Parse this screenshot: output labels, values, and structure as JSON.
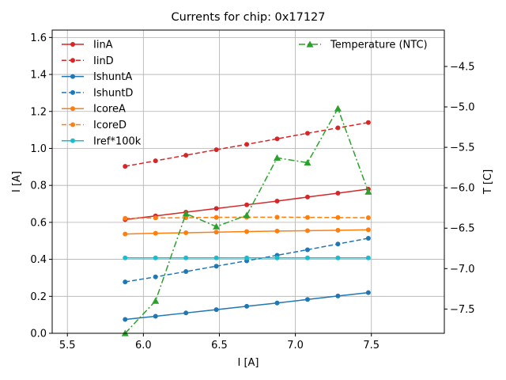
{
  "chart_data": {
    "type": "line",
    "title": "Currents for chip: 0x17127",
    "xlabel": "I [A]",
    "ylabel": "I [A]",
    "y2label": "T [C]",
    "xlim": [
      5.4,
      7.98
    ],
    "ylim": [
      0,
      1.64
    ],
    "y2lim": [
      -7.8,
      -4.05
    ],
    "xticks": [
      5.5,
      6.0,
      6.5,
      7.0,
      7.5
    ],
    "xtick_labels": [
      "5.5",
      "6.0",
      "6.5",
      "7.0",
      "7.5"
    ],
    "yticks": [
      0.0,
      0.2,
      0.4,
      0.6,
      0.8,
      1.0,
      1.2,
      1.4,
      1.6
    ],
    "ytick_labels": [
      "0.0",
      "0.2",
      "0.4",
      "0.6",
      "0.8",
      "1.0",
      "1.2",
      "1.4",
      "1.6"
    ],
    "y2ticks": [
      -7.5,
      -7.0,
      -6.5,
      -6.0,
      -5.5,
      -5.0,
      -4.5
    ],
    "y2tick_labels": [
      "−7.5",
      "−7.0",
      "−6.5",
      "−6.0",
      "−5.5",
      "−5.0",
      "−4.5"
    ],
    "grid": true,
    "legend_left": "upper-left",
    "legend_right": "upper-right",
    "x": [
      5.88,
      6.08,
      6.28,
      6.48,
      6.68,
      6.88,
      7.08,
      7.28,
      7.48
    ],
    "series": [
      {
        "name": "IinA",
        "axis": "left",
        "color": "#d62728",
        "dash": "solid",
        "marker": "circle",
        "values": [
          0.615,
          0.635,
          0.655,
          0.675,
          0.695,
          0.715,
          0.737,
          0.758,
          0.78
        ]
      },
      {
        "name": "IinD",
        "axis": "left",
        "color": "#d62728",
        "dash": "dashed",
        "marker": "circle",
        "values": [
          0.903,
          0.933,
          0.963,
          0.993,
          1.022,
          1.052,
          1.082,
          1.111,
          1.14
        ]
      },
      {
        "name": "IshuntA",
        "axis": "left",
        "color": "#1f77b4",
        "dash": "solid",
        "marker": "circle",
        "values": [
          0.075,
          0.092,
          0.11,
          0.128,
          0.146,
          0.164,
          0.183,
          0.202,
          0.22
        ]
      },
      {
        "name": "IshuntD",
        "axis": "left",
        "color": "#1f77b4",
        "dash": "dashed",
        "marker": "circle",
        "values": [
          0.278,
          0.305,
          0.334,
          0.363,
          0.392,
          0.422,
          0.452,
          0.483,
          0.514
        ]
      },
      {
        "name": "IcoreA",
        "axis": "left",
        "color": "#ff7f0e",
        "dash": "solid",
        "marker": "circle",
        "values": [
          0.537,
          0.541,
          0.544,
          0.547,
          0.55,
          0.553,
          0.555,
          0.557,
          0.56
        ]
      },
      {
        "name": "IcoreD",
        "axis": "left",
        "color": "#ff7f0e",
        "dash": "dashed",
        "marker": "circle",
        "values": [
          0.622,
          0.624,
          0.625,
          0.627,
          0.628,
          0.628,
          0.627,
          0.626,
          0.625
        ]
      },
      {
        "name": "Iref*100k",
        "axis": "left",
        "color": "#17becf",
        "dash": "solid",
        "marker": "circle",
        "values": [
          0.408,
          0.408,
          0.408,
          0.408,
          0.408,
          0.408,
          0.408,
          0.408,
          0.408
        ]
      },
      {
        "name": "Temperature (NTC)",
        "axis": "right",
        "color": "#2ca02c",
        "dash": "dashdot",
        "marker": "triangle",
        "values": [
          -7.8,
          -7.4,
          -6.32,
          -6.48,
          -6.34,
          -5.63,
          -5.69,
          -5.02,
          -6.05
        ]
      }
    ]
  }
}
